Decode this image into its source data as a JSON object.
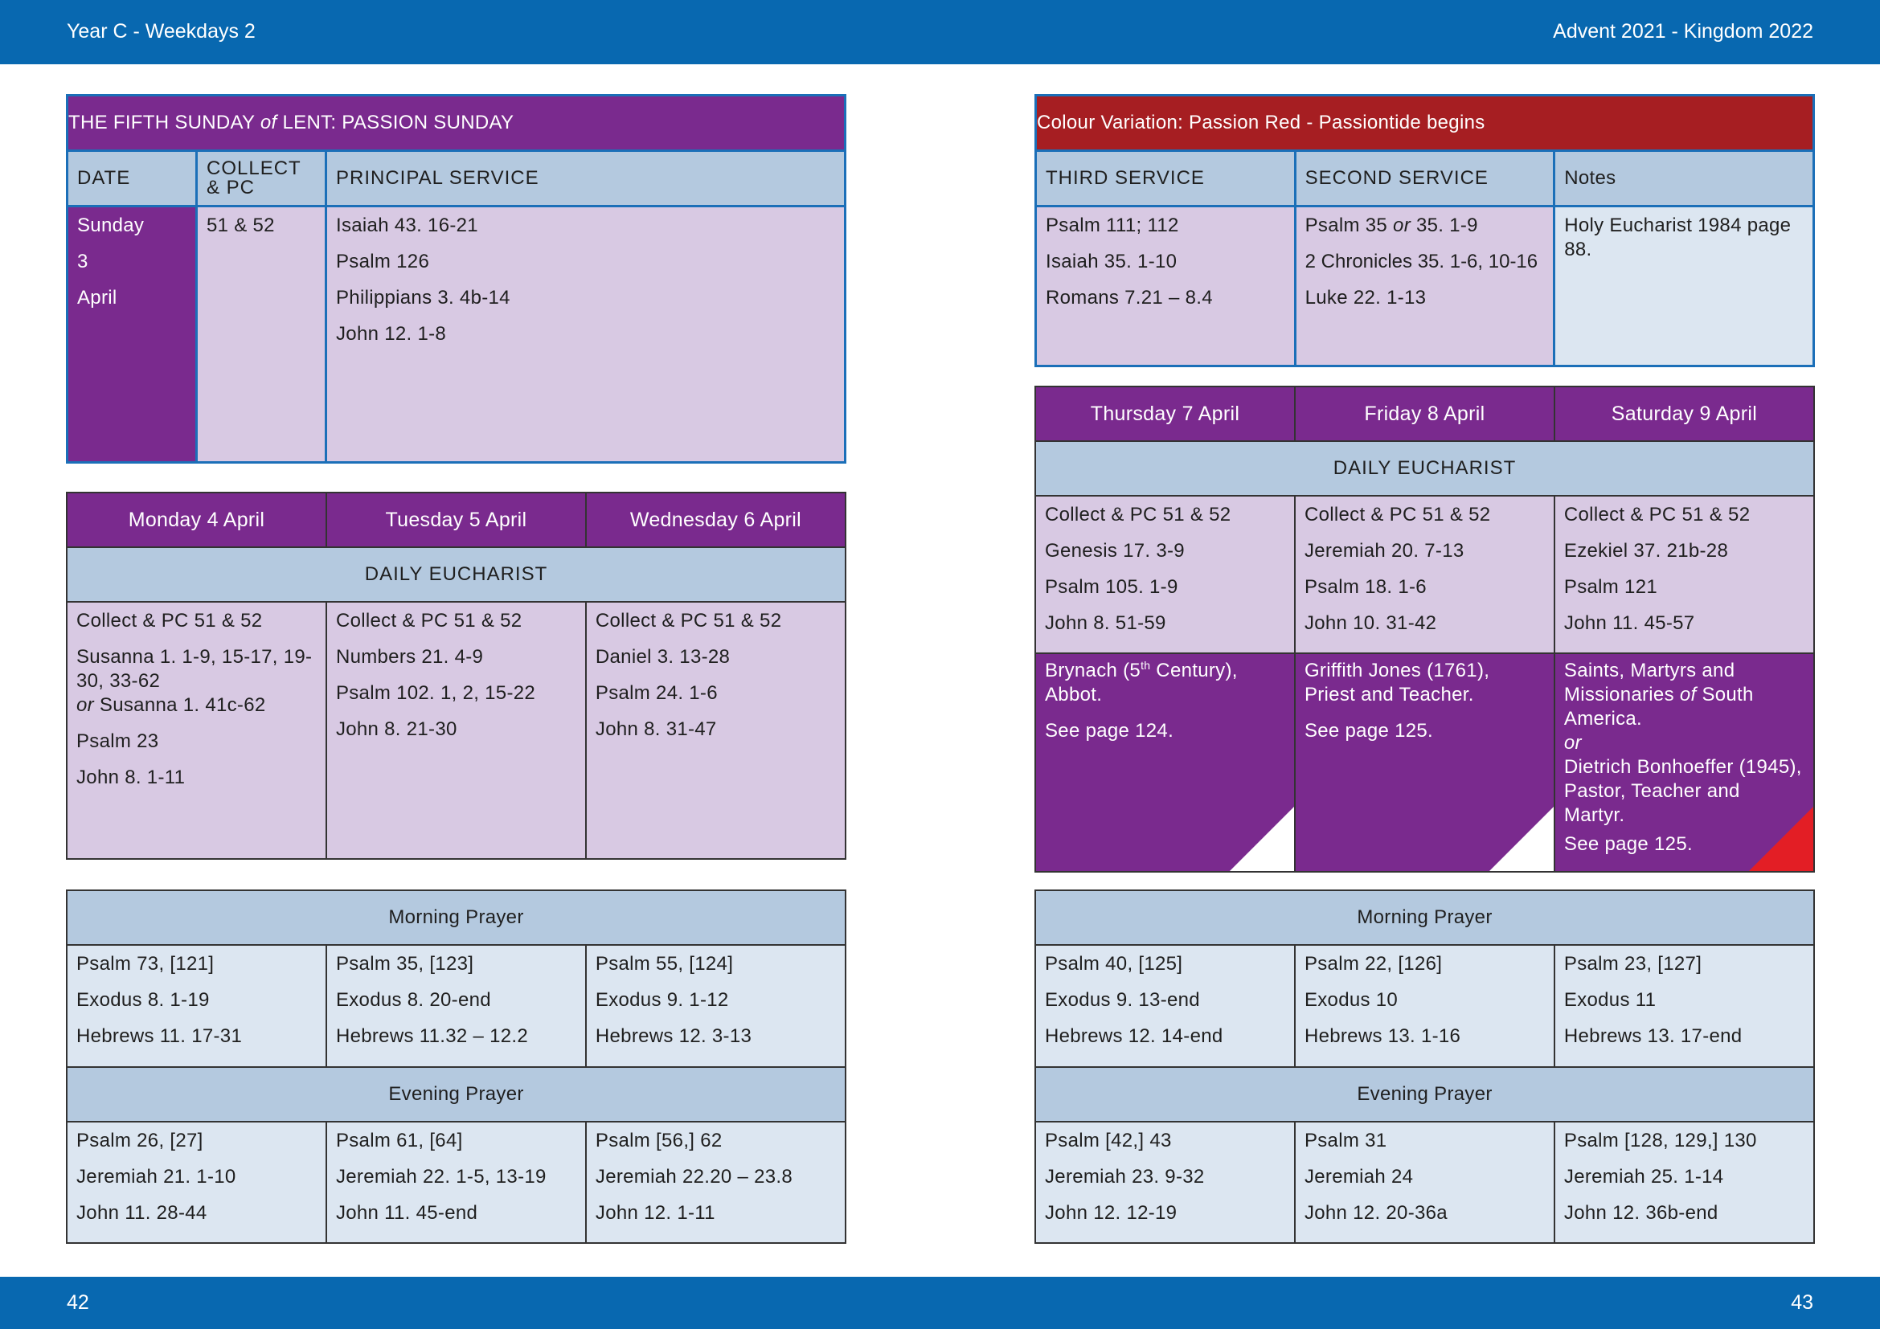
{
  "header": {
    "left": "Year C - Weekdays 2",
    "right": "Advent  2021 - Kingdom 2022"
  },
  "footer": {
    "left_page": "42",
    "right_page": "43"
  },
  "sunday": {
    "title_a": "THE FIFTH SUNDAY ",
    "title_of": "of",
    "title_b": " LENT: PASSION SUNDAY",
    "col_date": "DATE",
    "col_collect_1": "COLLECT",
    "col_collect_2": "& PC",
    "col_principal": "PRINCIPAL SERVICE",
    "date_day": "Sunday",
    "date_num": "3",
    "date_month": "April",
    "collect": "51 & 52",
    "principal": [
      "Isaiah 43. 16-21",
      "Psalm 126",
      "Philippians 3. 4b-14",
      "John 12. 1-8"
    ]
  },
  "sunday_right": {
    "title": "Colour Variation: Passion Red - Passiontide begins",
    "col_third": "THIRD SERVICE",
    "col_second": "SECOND SERVICE",
    "col_notes": "Notes",
    "third": [
      "Psalm 111; 112",
      "Isaiah 35. 1-10",
      "Romans 7.21 – 8.4"
    ],
    "second_1a": "Psalm 35 ",
    "second_1or": "or",
    "second_1b": " 35. 1-9",
    "second": [
      "2 Chronicles 35. 1-6, 10-16",
      "Luke 22. 1-13"
    ],
    "notes": "Holy Eucharist 1984 page 88."
  },
  "left_week": {
    "days": [
      "Monday 4 April",
      "Tuesday 5 April",
      "Wednesday 6 April"
    ],
    "eucharist_label": "DAILY EUCHARIST",
    "mon": {
      "collect": "Collect & PC 51 & 52",
      "reading_1": "Susanna 1. 1-9, 15-17, 19-30, 33-62",
      "or": "or",
      "reading_1_alt": " Susanna 1. 41c-62",
      "psalm": "Psalm 23",
      "gospel": "John 8. 1-11"
    },
    "tue": [
      "Collect & PC 51 & 52",
      "Numbers 21. 4-9",
      "Psalm 102. 1, 2, 15-22",
      "John 8. 21-30"
    ],
    "wed": [
      "Collect & PC 51 & 52",
      "Daniel 3. 13-28",
      "Psalm 24. 1-6",
      "John 8. 31-47"
    ]
  },
  "right_week": {
    "days": [
      "Thursday 7 April",
      "Friday 8 April",
      "Saturday 9 April"
    ],
    "eucharist_label": "DAILY EUCHARIST",
    "thu": [
      "Collect & PC 51 & 52",
      "Genesis 17. 3-9",
      "Psalm 105. 1-9",
      "John 8. 51-59"
    ],
    "fri": [
      "Collect & PC 51 & 52",
      "Jeremiah 20. 7-13",
      "Psalm 18. 1-6",
      "John 10. 31-42"
    ],
    "sat": [
      "Collect & PC 51 & 52",
      "Ezekiel 37. 21b-28",
      "Psalm 121",
      "John 11. 45-57"
    ],
    "commem_thu_a": "Brynach (5",
    "commem_thu_sup": "th",
    "commem_thu_b": " Century), Abbot.",
    "commem_thu_see": "See page 124.",
    "commem_fri": "Griffith Jones (1761), Priest and Teacher.",
    "commem_fri_see": "See page 125.",
    "commem_sat_a": "Saints, Martyrs and Missionaries ",
    "commem_sat_of": "of",
    "commem_sat_b": " South America.",
    "commem_sat_or": "or",
    "commem_sat_c": "Dietrich Bonhoeffer (1945), Pastor, Teacher and Martyr.",
    "commem_sat_see": "See page 125."
  },
  "left_offices": {
    "morning_label": "Morning Prayer",
    "evening_label": "Evening Prayer",
    "morning": [
      [
        "Psalm 73, [121]",
        "Exodus 8. 1-19",
        "Hebrews 11. 17-31"
      ],
      [
        "Psalm 35, [123]",
        "Exodus 8. 20-end",
        "Hebrews 11.32 – 12.2"
      ],
      [
        "Psalm 55, [124]",
        "Exodus 9. 1-12",
        "Hebrews 12. 3-13"
      ]
    ],
    "evening": [
      [
        "Psalm 26, [27]",
        "Jeremiah 21. 1-10",
        "John 11. 28-44"
      ],
      [
        "Psalm 61, [64]",
        "Jeremiah 22. 1-5, 13-19",
        "John 11. 45-end"
      ],
      [
        "Psalm [56,] 62",
        "Jeremiah 22.20 – 23.8",
        "John 12. 1-11"
      ]
    ]
  },
  "right_offices": {
    "morning_label": "Morning Prayer",
    "evening_label": "Evening Prayer",
    "morning": [
      [
        "Psalm 40, [125]",
        "Exodus 9. 13-end",
        "Hebrews 12. 14-end"
      ],
      [
        "Psalm 22, [126]",
        "Exodus 10",
        "Hebrews 13. 1-16"
      ],
      [
        "Psalm 23, [127]",
        "Exodus 11",
        "Hebrews 13. 17-end"
      ]
    ],
    "evening": [
      [
        "Psalm [42,] 43",
        "Jeremiah 23. 9-32",
        "John 12. 12-19"
      ],
      [
        "Psalm 31",
        "Jeremiah 24",
        "John 12. 20-36a"
      ],
      [
        "Psalm [128, 129,] 130",
        "Jeremiah 25. 1-14",
        "John 12. 36b-end"
      ]
    ]
  },
  "colors": {
    "band": "#0868b0",
    "purple": "#7a2a8e",
    "lavender": "#d8c9e3",
    "header_blue": "#b4c9df",
    "pale_blue": "#dce6f1",
    "passion_red": "#a61e22",
    "corner_red": "#e31e25"
  }
}
